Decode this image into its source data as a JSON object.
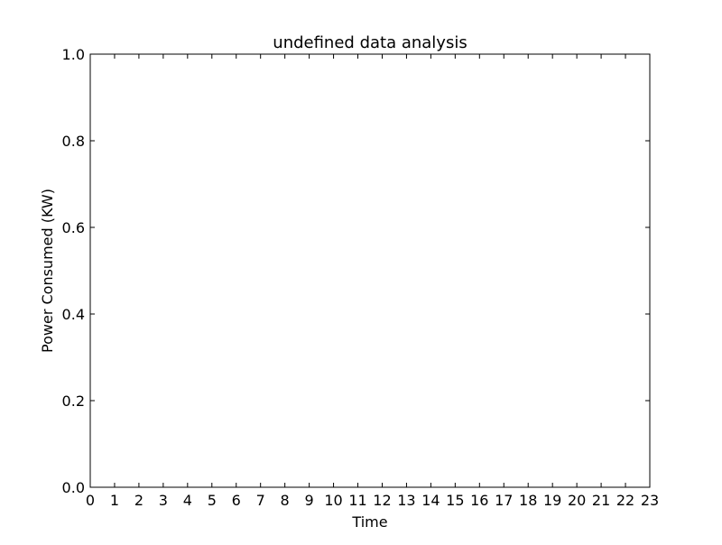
{
  "chart_data": {
    "type": "line",
    "title": "undefined data analysis",
    "xlabel": "Time",
    "ylabel": "Power Consumed (KW)",
    "xlim": [
      0,
      23
    ],
    "ylim": [
      0.0,
      1.0
    ],
    "x_ticks": [
      "0",
      "1",
      "2",
      "3",
      "4",
      "5",
      "6",
      "7",
      "8",
      "9",
      "10",
      "11",
      "12",
      "13",
      "14",
      "15",
      "16",
      "17",
      "18",
      "19",
      "20",
      "21",
      "22",
      "23"
    ],
    "y_ticks": [
      "0.0",
      "0.2",
      "0.4",
      "0.6",
      "0.8",
      "1.0"
    ],
    "series": [],
    "grid": false
  }
}
